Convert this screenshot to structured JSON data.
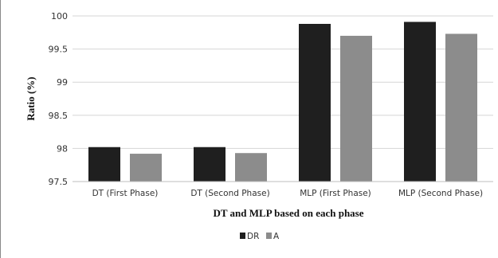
{
  "chart_data": {
    "type": "bar",
    "title": "",
    "xlabel": "DT and MLP based on each phase",
    "ylabel": "Ratio (%)",
    "ylim": [
      97.5,
      100
    ],
    "yticks": [
      "97.5",
      "98",
      "98.5",
      "99",
      "99.5",
      "100"
    ],
    "grid": true,
    "legend_position": "bottom-center",
    "categories": [
      "DT (First Phase)",
      "DT (Second Phase)",
      "MLP (First Phase)",
      "MLP (Second Phase)"
    ],
    "series": [
      {
        "name": "DR",
        "color": "#1f1f1f",
        "values": [
          98.02,
          98.02,
          99.88,
          99.91
        ]
      },
      {
        "name": "A",
        "color": "#8c8c8c",
        "values": [
          97.92,
          97.93,
          99.7,
          99.73
        ]
      }
    ]
  }
}
